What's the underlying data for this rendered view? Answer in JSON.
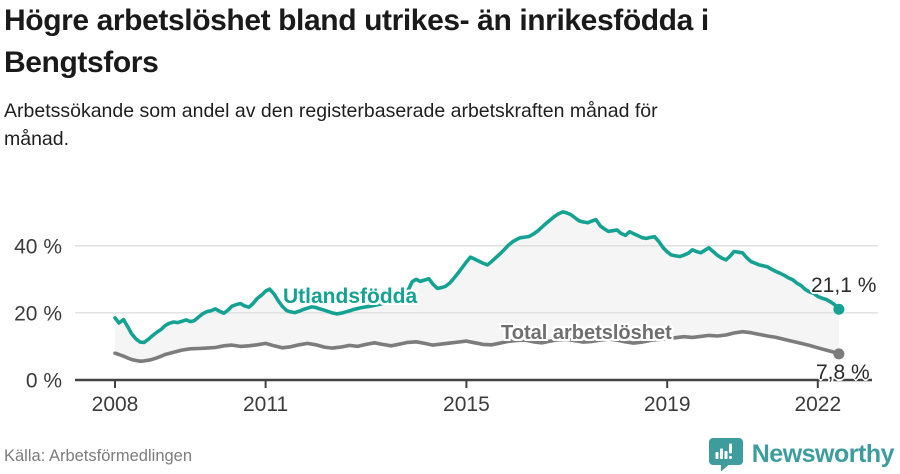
{
  "header": {
    "title": "Högre arbetslöshet bland utrikes- än inrikesfödda i Bengtsfors",
    "subtitle": "Arbetssökande som andel av den registerbaserade arbetskraften månad för månad."
  },
  "footer": {
    "source": "Källa: Arbetsförmedlingen",
    "brand": "Newsworthy"
  },
  "colors": {
    "accent_teal": "#15a292",
    "series_gray": "#7c7c7c",
    "brand_teal": "#3e9c9d",
    "gridline": "#dcdcdc",
    "axis": "#434343",
    "band_fill": "#f5f5f5"
  },
  "chart_data": {
    "type": "line",
    "unit": "%",
    "grid": "horizontal",
    "legend": "inline-labels",
    "xlim": [
      2008,
      2022.6
    ],
    "ylim": [
      0,
      56
    ],
    "x_ticks": [
      2008,
      2011,
      2015,
      2019,
      2022
    ],
    "y_ticks": [
      {
        "value": 0,
        "label": "0 %"
      },
      {
        "value": 20,
        "label": "20 %"
      },
      {
        "value": 40,
        "label": "40 %"
      }
    ],
    "fill_between_series": true,
    "series": [
      {
        "name": "Utlandsfödda",
        "color": "#15a292",
        "end_label": "21,1 %",
        "end_value": 21.1,
        "points": [
          [
            2008.0,
            18.5
          ],
          [
            2008.08,
            17.0
          ],
          [
            2008.17,
            18.0
          ],
          [
            2008.25,
            16.0
          ],
          [
            2008.33,
            13.8
          ],
          [
            2008.42,
            12.2
          ],
          [
            2008.5,
            11.3
          ],
          [
            2008.58,
            11.2
          ],
          [
            2008.67,
            12.2
          ],
          [
            2008.75,
            13.3
          ],
          [
            2008.83,
            14.2
          ],
          [
            2008.92,
            15.1
          ],
          [
            2009.0,
            16.2
          ],
          [
            2009.08,
            16.9
          ],
          [
            2009.17,
            17.3
          ],
          [
            2009.25,
            17.1
          ],
          [
            2009.33,
            17.5
          ],
          [
            2009.42,
            17.9
          ],
          [
            2009.5,
            17.4
          ],
          [
            2009.58,
            17.7
          ],
          [
            2009.67,
            18.8
          ],
          [
            2009.75,
            19.8
          ],
          [
            2009.83,
            20.4
          ],
          [
            2009.92,
            20.7
          ],
          [
            2010.0,
            21.2
          ],
          [
            2010.08,
            20.5
          ],
          [
            2010.17,
            19.9
          ],
          [
            2010.25,
            20.8
          ],
          [
            2010.33,
            22.0
          ],
          [
            2010.42,
            22.5
          ],
          [
            2010.5,
            22.8
          ],
          [
            2010.58,
            22.1
          ],
          [
            2010.67,
            21.7
          ],
          [
            2010.75,
            22.8
          ],
          [
            2010.83,
            24.3
          ],
          [
            2010.92,
            25.3
          ],
          [
            2011.0,
            26.5
          ],
          [
            2011.08,
            27.1
          ],
          [
            2011.17,
            25.6
          ],
          [
            2011.25,
            23.7
          ],
          [
            2011.33,
            22.0
          ],
          [
            2011.42,
            20.7
          ],
          [
            2011.5,
            20.3
          ],
          [
            2011.58,
            20.1
          ],
          [
            2011.67,
            20.5
          ],
          [
            2011.75,
            21.0
          ],
          [
            2011.83,
            21.4
          ],
          [
            2011.92,
            21.8
          ],
          [
            2012.0,
            21.6
          ],
          [
            2012.08,
            21.2
          ],
          [
            2012.17,
            20.8
          ],
          [
            2012.25,
            20.4
          ],
          [
            2012.33,
            20.0
          ],
          [
            2012.42,
            19.7
          ],
          [
            2012.5,
            19.9
          ],
          [
            2012.58,
            20.2
          ],
          [
            2012.67,
            20.6
          ],
          [
            2012.75,
            21.0
          ],
          [
            2012.92,
            21.6
          ],
          [
            2013.08,
            22.0
          ],
          [
            2013.25,
            22.5
          ],
          [
            2013.42,
            23.2
          ],
          [
            2013.58,
            23.9
          ],
          [
            2013.75,
            24.9
          ],
          [
            2013.83,
            26.5
          ],
          [
            2013.92,
            29.3
          ],
          [
            2014.0,
            30.0
          ],
          [
            2014.08,
            29.4
          ],
          [
            2014.17,
            29.8
          ],
          [
            2014.25,
            30.2
          ],
          [
            2014.33,
            28.6
          ],
          [
            2014.42,
            27.3
          ],
          [
            2014.5,
            27.5
          ],
          [
            2014.58,
            27.9
          ],
          [
            2014.67,
            28.9
          ],
          [
            2014.75,
            30.3
          ],
          [
            2014.83,
            31.8
          ],
          [
            2014.92,
            33.6
          ],
          [
            2015.0,
            35.2
          ],
          [
            2015.08,
            36.6
          ],
          [
            2015.17,
            36.0
          ],
          [
            2015.25,
            35.4
          ],
          [
            2015.33,
            34.8
          ],
          [
            2015.42,
            34.3
          ],
          [
            2015.5,
            35.3
          ],
          [
            2015.58,
            36.4
          ],
          [
            2015.67,
            37.6
          ],
          [
            2015.75,
            38.8
          ],
          [
            2015.83,
            40.1
          ],
          [
            2015.92,
            41.2
          ],
          [
            2016.0,
            41.9
          ],
          [
            2016.08,
            42.4
          ],
          [
            2016.17,
            42.6
          ],
          [
            2016.25,
            42.8
          ],
          [
            2016.33,
            43.5
          ],
          [
            2016.42,
            44.4
          ],
          [
            2016.5,
            45.5
          ],
          [
            2016.58,
            46.6
          ],
          [
            2016.67,
            47.7
          ],
          [
            2016.75,
            48.7
          ],
          [
            2016.83,
            49.5
          ],
          [
            2016.92,
            50.1
          ],
          [
            2017.0,
            49.8
          ],
          [
            2017.08,
            49.3
          ],
          [
            2017.17,
            48.3
          ],
          [
            2017.25,
            47.4
          ],
          [
            2017.33,
            47.1
          ],
          [
            2017.42,
            46.9
          ],
          [
            2017.5,
            47.4
          ],
          [
            2017.58,
            47.8
          ],
          [
            2017.67,
            45.9
          ],
          [
            2017.75,
            45.0
          ],
          [
            2017.83,
            44.3
          ],
          [
            2017.92,
            44.5
          ],
          [
            2018.0,
            44.7
          ],
          [
            2018.08,
            43.7
          ],
          [
            2018.17,
            43.1
          ],
          [
            2018.25,
            44.2
          ],
          [
            2018.33,
            43.6
          ],
          [
            2018.42,
            43.0
          ],
          [
            2018.5,
            42.4
          ],
          [
            2018.58,
            42.2
          ],
          [
            2018.67,
            42.5
          ],
          [
            2018.75,
            42.7
          ],
          [
            2018.83,
            41.3
          ],
          [
            2018.92,
            39.4
          ],
          [
            2019.0,
            38.2
          ],
          [
            2019.08,
            37.3
          ],
          [
            2019.17,
            37.0
          ],
          [
            2019.25,
            36.8
          ],
          [
            2019.33,
            37.2
          ],
          [
            2019.42,
            37.8
          ],
          [
            2019.5,
            38.8
          ],
          [
            2019.58,
            38.3
          ],
          [
            2019.67,
            37.9
          ],
          [
            2019.75,
            38.7
          ],
          [
            2019.83,
            39.4
          ],
          [
            2019.92,
            38.2
          ],
          [
            2020.0,
            37.2
          ],
          [
            2020.08,
            36.4
          ],
          [
            2020.17,
            35.8
          ],
          [
            2020.25,
            36.9
          ],
          [
            2020.33,
            38.3
          ],
          [
            2020.42,
            38.1
          ],
          [
            2020.5,
            37.9
          ],
          [
            2020.58,
            36.5
          ],
          [
            2020.67,
            35.3
          ],
          [
            2020.75,
            34.8
          ],
          [
            2020.83,
            34.3
          ],
          [
            2020.92,
            34.0
          ],
          [
            2021.0,
            33.7
          ],
          [
            2021.08,
            33.0
          ],
          [
            2021.17,
            32.3
          ],
          [
            2021.25,
            31.8
          ],
          [
            2021.33,
            31.2
          ],
          [
            2021.42,
            30.4
          ],
          [
            2021.5,
            29.9
          ],
          [
            2021.58,
            28.9
          ],
          [
            2021.67,
            28.1
          ],
          [
            2021.75,
            27.0
          ],
          [
            2021.83,
            26.3
          ],
          [
            2021.92,
            25.8
          ],
          [
            2022.0,
            24.9
          ],
          [
            2022.08,
            24.4
          ],
          [
            2022.17,
            24.0
          ],
          [
            2022.25,
            23.3
          ],
          [
            2022.33,
            22.5
          ],
          [
            2022.42,
            21.1
          ]
        ]
      },
      {
        "name": "Total arbetslöshet",
        "color": "#7c7c7c",
        "end_label": "7,8 %",
        "end_value": 7.8,
        "points": [
          [
            2008.0,
            8.0
          ],
          [
            2008.08,
            7.6
          ],
          [
            2008.17,
            7.1
          ],
          [
            2008.25,
            6.6
          ],
          [
            2008.33,
            6.1
          ],
          [
            2008.42,
            5.8
          ],
          [
            2008.5,
            5.6
          ],
          [
            2008.58,
            5.7
          ],
          [
            2008.67,
            5.9
          ],
          [
            2008.75,
            6.2
          ],
          [
            2008.83,
            6.6
          ],
          [
            2008.92,
            7.1
          ],
          [
            2009.0,
            7.6
          ],
          [
            2009.17,
            8.3
          ],
          [
            2009.33,
            8.9
          ],
          [
            2009.5,
            9.3
          ],
          [
            2009.67,
            9.4
          ],
          [
            2009.83,
            9.5
          ],
          [
            2010.0,
            9.7
          ],
          [
            2010.17,
            10.2
          ],
          [
            2010.33,
            10.4
          ],
          [
            2010.5,
            10.0
          ],
          [
            2010.67,
            10.2
          ],
          [
            2010.83,
            10.5
          ],
          [
            2011.0,
            10.9
          ],
          [
            2011.17,
            10.2
          ],
          [
            2011.33,
            9.6
          ],
          [
            2011.5,
            9.9
          ],
          [
            2011.67,
            10.5
          ],
          [
            2011.83,
            10.9
          ],
          [
            2012.0,
            10.5
          ],
          [
            2012.17,
            9.8
          ],
          [
            2012.33,
            9.5
          ],
          [
            2012.5,
            9.8
          ],
          [
            2012.67,
            10.3
          ],
          [
            2012.83,
            10.0
          ],
          [
            2013.0,
            10.6
          ],
          [
            2013.17,
            11.1
          ],
          [
            2013.33,
            10.6
          ],
          [
            2013.5,
            10.2
          ],
          [
            2013.67,
            10.7
          ],
          [
            2013.83,
            11.2
          ],
          [
            2014.0,
            11.4
          ],
          [
            2014.17,
            10.9
          ],
          [
            2014.33,
            10.4
          ],
          [
            2014.5,
            10.7
          ],
          [
            2014.67,
            11.0
          ],
          [
            2014.83,
            11.3
          ],
          [
            2015.0,
            11.6
          ],
          [
            2015.17,
            11.1
          ],
          [
            2015.33,
            10.6
          ],
          [
            2015.5,
            10.5
          ],
          [
            2015.67,
            11.0
          ],
          [
            2015.83,
            11.5
          ],
          [
            2016.0,
            11.8
          ],
          [
            2016.17,
            11.9
          ],
          [
            2016.33,
            11.4
          ],
          [
            2016.5,
            11.1
          ],
          [
            2016.67,
            11.6
          ],
          [
            2016.83,
            12.0
          ],
          [
            2017.0,
            12.1
          ],
          [
            2017.17,
            11.7
          ],
          [
            2017.33,
            11.3
          ],
          [
            2017.5,
            11.5
          ],
          [
            2017.67,
            11.9
          ],
          [
            2017.83,
            12.2
          ],
          [
            2018.0,
            11.9
          ],
          [
            2018.17,
            11.4
          ],
          [
            2018.33,
            11.0
          ],
          [
            2018.5,
            11.3
          ],
          [
            2018.67,
            11.8
          ],
          [
            2018.83,
            12.1
          ],
          [
            2019.0,
            12.3
          ],
          [
            2019.17,
            12.6
          ],
          [
            2019.33,
            12.9
          ],
          [
            2019.5,
            12.7
          ],
          [
            2019.67,
            13.0
          ],
          [
            2019.83,
            13.3
          ],
          [
            2020.0,
            13.1
          ],
          [
            2020.17,
            13.4
          ],
          [
            2020.33,
            14.0
          ],
          [
            2020.5,
            14.4
          ],
          [
            2020.67,
            14.1
          ],
          [
            2020.83,
            13.6
          ],
          [
            2021.0,
            13.1
          ],
          [
            2021.17,
            12.7
          ],
          [
            2021.33,
            12.1
          ],
          [
            2021.5,
            11.5
          ],
          [
            2021.67,
            10.9
          ],
          [
            2021.83,
            10.3
          ],
          [
            2022.0,
            9.6
          ],
          [
            2022.17,
            8.9
          ],
          [
            2022.33,
            8.3
          ],
          [
            2022.42,
            7.8
          ]
        ]
      }
    ]
  }
}
